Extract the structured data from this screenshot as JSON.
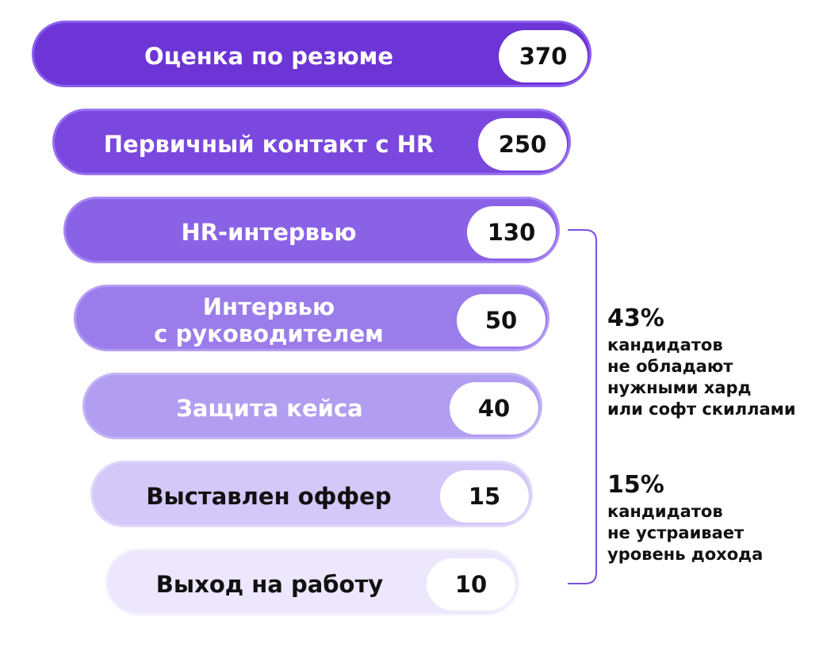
{
  "stages": [
    {
      "label": "Оценка по резюме",
      "count": "370",
      "fill": "#6d34d6",
      "ring": "#8a5ef0",
      "text_color": "#ffffff"
    },
    {
      "label": "Первичный контакт с HR",
      "count": "250",
      "fill": "#7a48de",
      "ring": "#9771f0",
      "text_color": "#ffffff"
    },
    {
      "label": "HR-интервью",
      "count": "130",
      "fill": "#8a62e6",
      "ring": "#a586f2",
      "text_color": "#ffffff"
    },
    {
      "label": "Интервью\nс руководителем",
      "count": "50",
      "fill": "#9b7ceb",
      "ring": "#b39cf4",
      "text_color": "#ffffff"
    },
    {
      "label": "Защита кейса",
      "count": "40",
      "fill": "#b19ef0",
      "ring": "#c4b5f6",
      "text_color": "#ffffff"
    },
    {
      "label": "Выставлен оффер",
      "count": "15",
      "fill": "#d4c8f8",
      "ring": "#e1d8fa",
      "text_color": "#111111"
    },
    {
      "label": "Выход на работу",
      "count": "10",
      "fill": "#ece7fc",
      "ring": "#f3effd",
      "text_color": "#111111"
    }
  ],
  "notes": [
    {
      "percent": "43%",
      "text": "кандидатов\nне обладают\nнужными хард\nили софт скиллами"
    },
    {
      "percent": "15%",
      "text": "кандидатов\nне устраивает\nуровень дохода"
    }
  ],
  "bracket_color": "#7b4fe0"
}
